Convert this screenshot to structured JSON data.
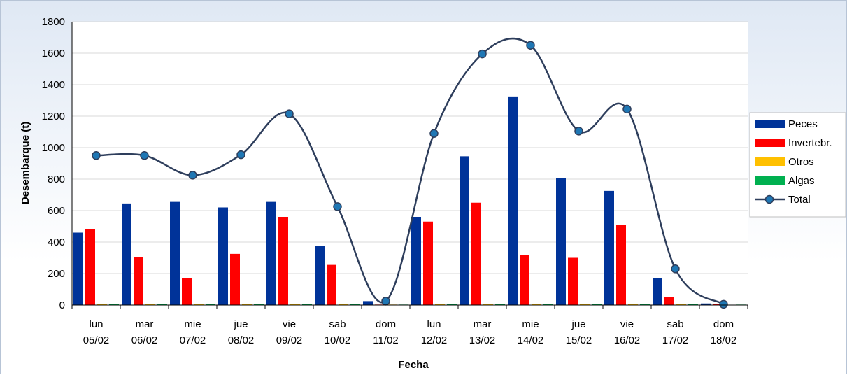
{
  "chart_data": {
    "type": "bar",
    "title": "",
    "xlabel": "Fecha",
    "ylabel": "Desembarque (t)",
    "ylim": [
      0,
      1800
    ],
    "yticks": [
      0,
      200,
      400,
      600,
      800,
      1000,
      1200,
      1400,
      1600,
      1800
    ],
    "grid": true,
    "legend_position": "right",
    "categories": [
      [
        "lun",
        "05/02"
      ],
      [
        "mar",
        "06/02"
      ],
      [
        "mie",
        "07/02"
      ],
      [
        "jue",
        "08/02"
      ],
      [
        "vie",
        "09/02"
      ],
      [
        "sab",
        "10/02"
      ],
      [
        "dom",
        "11/02"
      ],
      [
        "lun",
        "12/02"
      ],
      [
        "mar",
        "13/02"
      ],
      [
        "mie",
        "14/02"
      ],
      [
        "jue",
        "15/02"
      ],
      [
        "vie",
        "16/02"
      ],
      [
        "sab",
        "17/02"
      ],
      [
        "dom",
        "18/02"
      ]
    ],
    "series": [
      {
        "name": "Peces",
        "kind": "bar",
        "color": "#003399",
        "values": [
          460,
          645,
          655,
          620,
          655,
          375,
          25,
          560,
          945,
          1325,
          805,
          725,
          170,
          10
        ]
      },
      {
        "name": "Invertebr.",
        "kind": "bar",
        "color": "#ff0000",
        "values": [
          480,
          305,
          170,
          325,
          560,
          255,
          3,
          530,
          650,
          320,
          300,
          510,
          50,
          5
        ]
      },
      {
        "name": "Otros",
        "kind": "bar",
        "color": "#ffc000",
        "values": [
          8,
          5,
          5,
          5,
          5,
          5,
          3,
          5,
          5,
          5,
          5,
          5,
          5,
          2
        ]
      },
      {
        "name": "Algas",
        "kind": "bar",
        "color": "#00b050",
        "values": [
          8,
          5,
          5,
          5,
          5,
          5,
          3,
          5,
          5,
          5,
          5,
          8,
          8,
          3
        ]
      },
      {
        "name": "Total",
        "kind": "line",
        "color": "#2e3e5c",
        "marker_color": "#1f77b4",
        "values": [
          950,
          950,
          825,
          955,
          1215,
          625,
          25,
          1090,
          1595,
          1650,
          1105,
          1245,
          230,
          5
        ]
      }
    ]
  }
}
